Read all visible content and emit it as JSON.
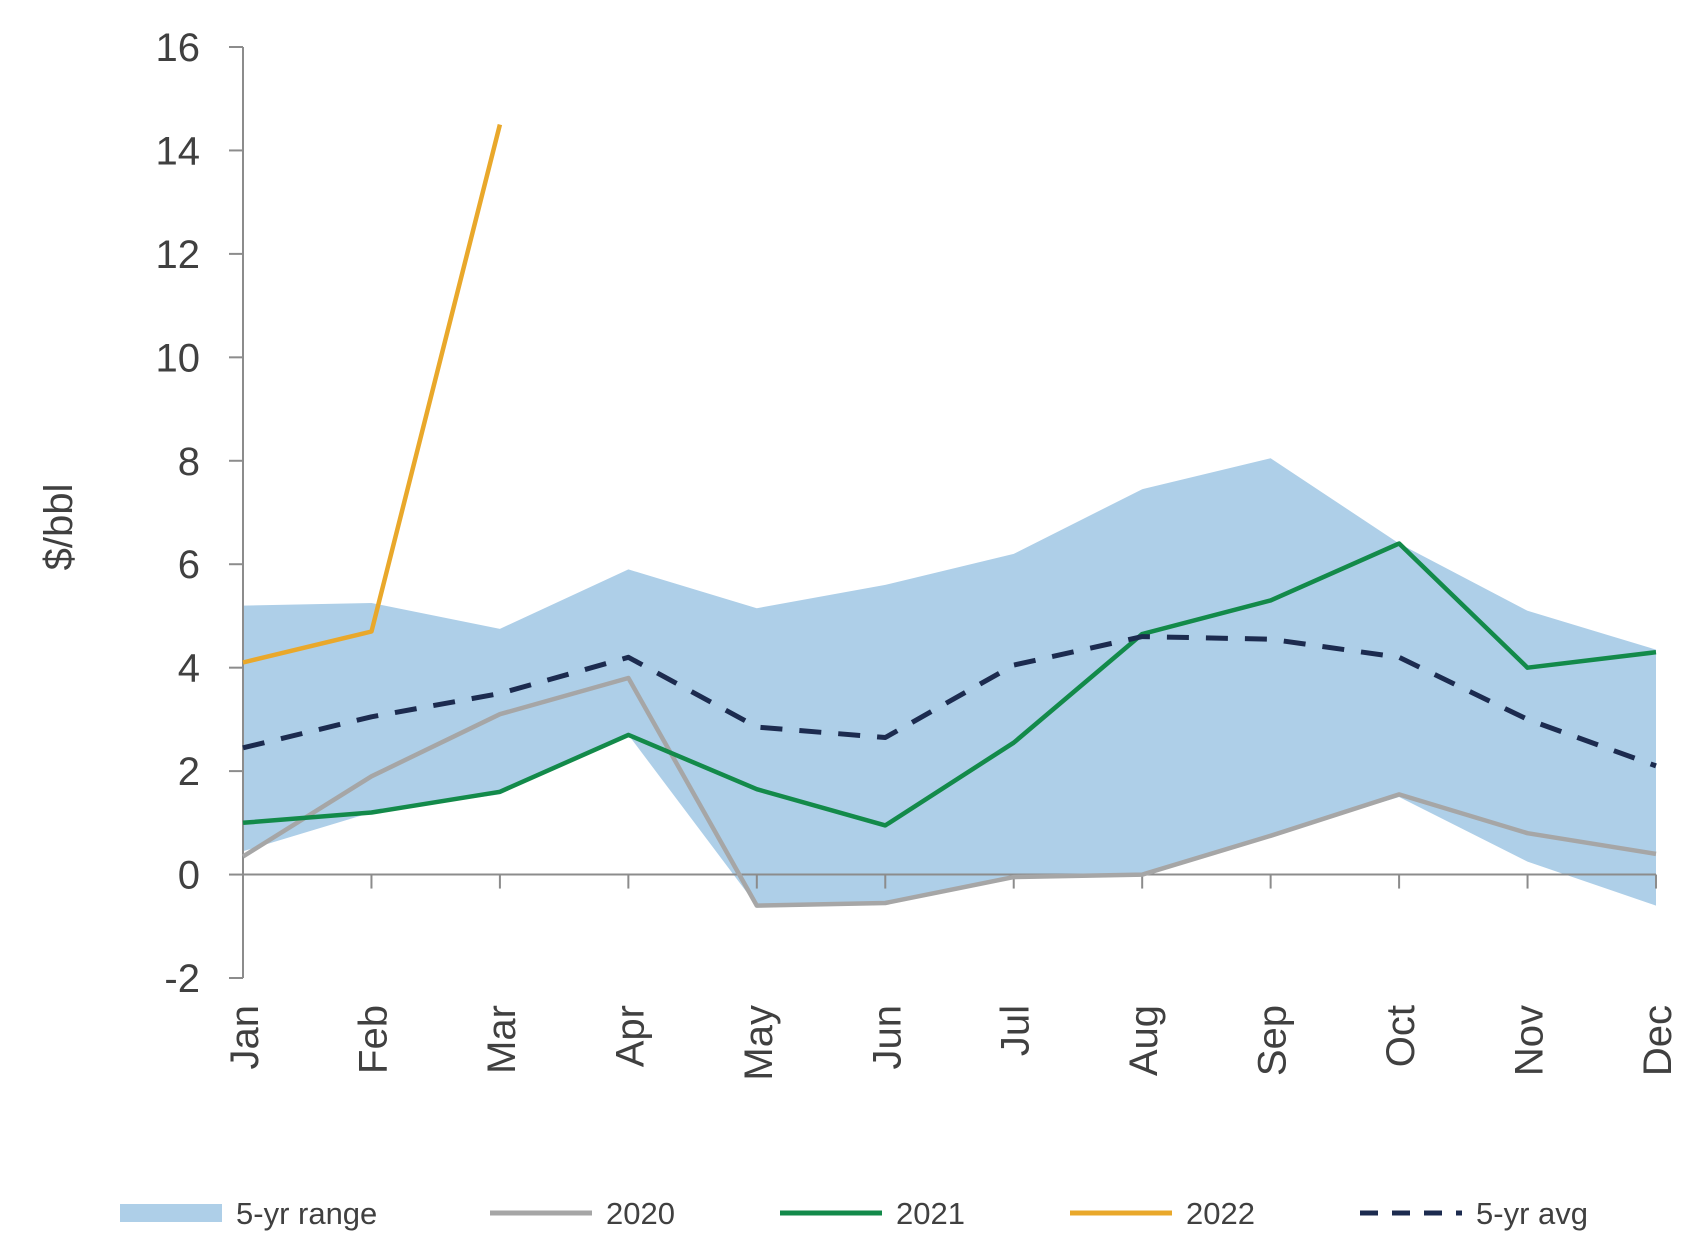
{
  "chart_data": {
    "type": "line",
    "title": "",
    "xlabel": "",
    "ylabel": "$/bbl",
    "ylim": [
      -2,
      16
    ],
    "yticks": [
      -2,
      0,
      2,
      4,
      6,
      8,
      10,
      12,
      14,
      16
    ],
    "categories": [
      "Jan",
      "Feb",
      "Mar",
      "Apr",
      "May",
      "Jun",
      "Jul",
      "Aug",
      "Sep",
      "Oct",
      "Nov",
      "Dec"
    ],
    "grid": false,
    "legend_position": "bottom",
    "range": {
      "name": "5-yr range",
      "color": "#aecfe8",
      "upper": [
        5.2,
        5.25,
        4.75,
        5.9,
        5.15,
        5.6,
        6.2,
        7.45,
        8.05,
        6.4,
        5.1,
        4.35
      ],
      "lower": [
        0.45,
        1.2,
        1.55,
        2.7,
        -0.6,
        -0.55,
        -0.05,
        0.0,
        0.75,
        1.5,
        0.25,
        -0.6
      ]
    },
    "series": [
      {
        "name": "2020",
        "color": "#a6a6a6",
        "style": "solid",
        "values": [
          0.35,
          1.9,
          3.1,
          3.8,
          -0.6,
          -0.55,
          -0.05,
          0.0,
          0.75,
          1.55,
          0.8,
          0.4
        ]
      },
      {
        "name": "2021",
        "color": "#138a4a",
        "style": "solid",
        "values": [
          1.0,
          1.2,
          1.6,
          2.7,
          1.65,
          0.95,
          2.55,
          4.65,
          5.3,
          6.4,
          4.0,
          4.3
        ]
      },
      {
        "name": "2022",
        "color": "#e9a82b",
        "style": "solid",
        "values": [
          4.1,
          4.7,
          14.5,
          null,
          null,
          null,
          null,
          null,
          null,
          null,
          null,
          null
        ]
      },
      {
        "name": "5-yr avg",
        "color": "#1c2b4f",
        "style": "dashed",
        "values": [
          2.45,
          3.05,
          3.5,
          4.2,
          2.85,
          2.65,
          4.05,
          4.6,
          4.55,
          4.2,
          3.0,
          2.1
        ]
      }
    ]
  }
}
